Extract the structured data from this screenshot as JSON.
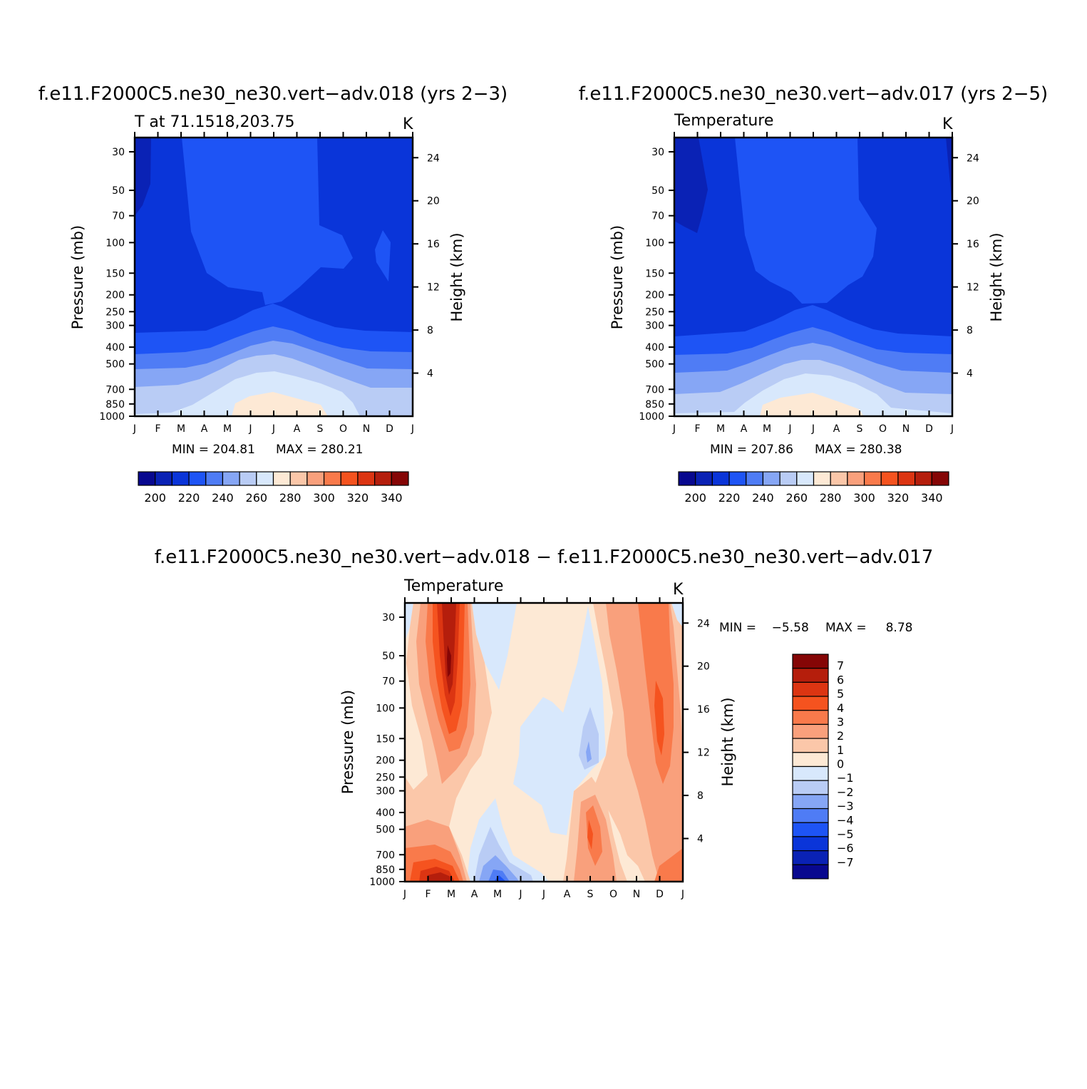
{
  "chart_data": [
    {
      "type": "contour",
      "title": "f.e11.F2000C5.ne30_ne30.vert−adv.018 (yrs 2−3)",
      "left_string": "T at 71.1518,203.75",
      "right_string": "K",
      "xlabel": "",
      "ylabel": "Pressure (mb)",
      "ylabel_right": "Height (km)",
      "x_ticks": [
        "J",
        "F",
        "M",
        "A",
        "M",
        "J",
        "J",
        "A",
        "S",
        "O",
        "N",
        "D",
        "J"
      ],
      "y_ticks": [
        "30",
        "50",
        "70",
        "100",
        "150",
        "200",
        "250",
        "300",
        "400",
        "500",
        "700",
        "850",
        "1000"
      ],
      "y_right_ticks": [
        "4",
        "8",
        "12",
        "16",
        "20",
        "24"
      ],
      "min_text": "MIN =  204.81",
      "max_text": "MAX =  280.21",
      "min": 204.81,
      "max": 280.21,
      "colorbar": {
        "labels": [
          "200",
          "220",
          "240",
          "260",
          "280",
          "300",
          "320",
          "340"
        ],
        "colors": [
          "#08088f",
          "#0a22b5",
          "#0a35d9",
          "#1e54f5",
          "#4f7cf5",
          "#86a6f5",
          "#b9ccf5",
          "#d8e8fc",
          "#fde9d5",
          "#fbc7a9",
          "#f9a07c",
          "#f97a4b",
          "#f5531f",
          "#dc3512",
          "#b51e0c",
          "#850606"
        ]
      }
    },
    {
      "type": "contour",
      "title": "f.e11.F2000C5.ne30_ne30.vert−adv.017 (yrs 2−5)",
      "left_string": "Temperature",
      "right_string": "K",
      "xlabel": "",
      "ylabel": "Pressure (mb)",
      "ylabel_right": "Height (km)",
      "x_ticks": [
        "J",
        "F",
        "M",
        "A",
        "M",
        "J",
        "J",
        "A",
        "S",
        "O",
        "N",
        "D",
        "J"
      ],
      "y_ticks": [
        "30",
        "50",
        "70",
        "100",
        "150",
        "200",
        "250",
        "300",
        "400",
        "500",
        "700",
        "850",
        "1000"
      ],
      "y_right_ticks": [
        "4",
        "8",
        "12",
        "16",
        "20",
        "24"
      ],
      "min_text": "MIN =  207.86",
      "max_text": "MAX =  280.38",
      "min": 207.86,
      "max": 280.38,
      "colorbar": {
        "labels": [
          "200",
          "220",
          "240",
          "260",
          "280",
          "300",
          "320",
          "340"
        ],
        "colors": [
          "#08088f",
          "#0a22b5",
          "#0a35d9",
          "#1e54f5",
          "#4f7cf5",
          "#86a6f5",
          "#b9ccf5",
          "#d8e8fc",
          "#fde9d5",
          "#fbc7a9",
          "#f9a07c",
          "#f97a4b",
          "#f5531f",
          "#dc3512",
          "#b51e0c",
          "#850606"
        ]
      }
    },
    {
      "type": "contour",
      "title": "f.e11.F2000C5.ne30_ne30.vert−adv.018 − f.e11.F2000C5.ne30_ne30.vert−adv.017",
      "left_string": "Temperature",
      "right_string": "K",
      "xlabel": "",
      "ylabel": "Pressure (mb)",
      "ylabel_right": "Height (km)",
      "x_ticks": [
        "J",
        "F",
        "M",
        "A",
        "M",
        "J",
        "J",
        "A",
        "S",
        "O",
        "N",
        "D",
        "J"
      ],
      "y_ticks": [
        "30",
        "50",
        "70",
        "100",
        "150",
        "200",
        "250",
        "300",
        "400",
        "500",
        "700",
        "850",
        "1000"
      ],
      "y_right_ticks": [
        "4",
        "8",
        "12",
        "16",
        "20",
        "24"
      ],
      "min_text": "MIN =    −5.58",
      "max_text": "MAX =     8.78",
      "min": -5.58,
      "max": 8.78,
      "colorbar": {
        "labels": [
          "7",
          "6",
          "5",
          "4",
          "3",
          "2",
          "1",
          "0",
          "−1",
          "−2",
          "−3",
          "−4",
          "−5",
          "−6",
          "−7"
        ],
        "colors": [
          "#850606",
          "#b51e0c",
          "#dc3512",
          "#f5531f",
          "#f97a4b",
          "#f9a07c",
          "#fbc7a9",
          "#fde9d5",
          "#d8e8fc",
          "#b9ccf5",
          "#86a6f5",
          "#4f7cf5",
          "#1e54f5",
          "#0a35d9",
          "#0a22b5",
          "#08088f"
        ]
      }
    }
  ]
}
